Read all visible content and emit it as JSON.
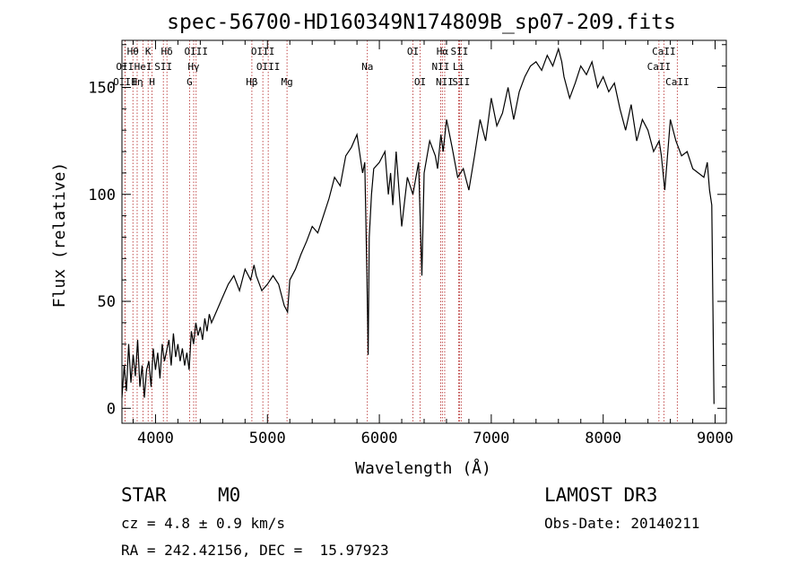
{
  "chart_data": {
    "type": "line",
    "title": "spec-56700-HD160349N174809B_sp07-209.fits",
    "xlabel": "Wavelength (Å)",
    "ylabel": "Flux (relative)",
    "xlim": [
      3700,
      9100
    ],
    "ylim": [
      -7,
      172
    ],
    "xticks": [
      4000,
      5000,
      6000,
      7000,
      8000,
      9000
    ],
    "yticks": [
      0,
      50,
      100,
      150
    ],
    "grid": false,
    "series": [
      {
        "color": "#000000",
        "x": [
          3700,
          3720,
          3740,
          3760,
          3780,
          3800,
          3820,
          3840,
          3860,
          3880,
          3900,
          3920,
          3940,
          3960,
          3980,
          4000,
          4020,
          4040,
          4060,
          4080,
          4100,
          4120,
          4140,
          4160,
          4180,
          4200,
          4220,
          4240,
          4260,
          4280,
          4300,
          4320,
          4340,
          4360,
          4380,
          4400,
          4420,
          4440,
          4460,
          4480,
          4500,
          4550,
          4600,
          4650,
          4700,
          4750,
          4800,
          4850,
          4880,
          4900,
          4950,
          5000,
          5050,
          5100,
          5150,
          5180,
          5200,
          5250,
          5300,
          5350,
          5400,
          5450,
          5500,
          5550,
          5600,
          5650,
          5700,
          5750,
          5800,
          5850,
          5870,
          5890,
          5900,
          5910,
          5930,
          5950,
          6000,
          6050,
          6080,
          6100,
          6120,
          6150,
          6200,
          6250,
          6300,
          6350,
          6380,
          6400,
          6450,
          6500,
          6520,
          6550,
          6570,
          6600,
          6650,
          6700,
          6750,
          6800,
          6850,
          6900,
          6950,
          7000,
          7050,
          7100,
          7150,
          7200,
          7250,
          7300,
          7350,
          7400,
          7450,
          7500,
          7550,
          7600,
          7630,
          7650,
          7700,
          7750,
          7800,
          7850,
          7900,
          7950,
          8000,
          8050,
          8100,
          8150,
          8200,
          8250,
          8300,
          8350,
          8400,
          8450,
          8500,
          8520,
          8550,
          8600,
          8650,
          8700,
          8750,
          8800,
          8850,
          8900,
          8930,
          8950,
          8970,
          8980,
          8990
        ],
        "values": [
          5,
          20,
          8,
          30,
          12,
          25,
          15,
          32,
          10,
          20,
          5,
          18,
          22,
          10,
          28,
          18,
          26,
          14,
          30,
          22,
          27,
          32,
          20,
          35,
          24,
          30,
          22,
          28,
          20,
          26,
          18,
          36,
          30,
          40,
          34,
          38,
          32,
          42,
          36,
          44,
          40,
          46,
          52,
          58,
          62,
          55,
          65,
          60,
          67,
          62,
          55,
          58,
          62,
          58,
          48,
          45,
          60,
          65,
          72,
          78,
          85,
          82,
          90,
          98,
          108,
          104,
          118,
          122,
          128,
          110,
          115,
          60,
          25,
          80,
          100,
          112,
          115,
          120,
          100,
          110,
          95,
          120,
          85,
          108,
          100,
          115,
          62,
          110,
          125,
          118,
          112,
          128,
          120,
          135,
          122,
          108,
          112,
          102,
          118,
          135,
          125,
          145,
          132,
          138,
          150,
          135,
          148,
          155,
          160,
          162,
          158,
          165,
          160,
          168,
          162,
          155,
          145,
          152,
          160,
          156,
          162,
          150,
          155,
          148,
          152,
          140,
          130,
          142,
          125,
          135,
          130,
          120,
          125,
          118,
          102,
          135,
          125,
          118,
          120,
          112,
          110,
          108,
          115,
          102,
          95,
          50,
          2
        ]
      }
    ],
    "lines": [
      {
        "label": "Hθ",
        "x": 3798,
        "row": 1
      },
      {
        "label": "OII",
        "x": 3727,
        "row": 2
      },
      {
        "label": "Hη",
        "x": 3836,
        "row": 3
      },
      {
        "label": "OIII",
        "x": 3727,
        "row": 3
      },
      {
        "label": "HeI",
        "x": 3889,
        "row": 2
      },
      {
        "label": "K",
        "x": 3934,
        "row": 1
      },
      {
        "label": "H",
        "x": 3969,
        "row": 3
      },
      {
        "label": "SII",
        "x": 4070,
        "row": 2
      },
      {
        "label": "Hδ",
        "x": 4102,
        "row": 1
      },
      {
        "label": "OIII",
        "x": 4363,
        "row": 1
      },
      {
        "label": "Hγ",
        "x": 4341,
        "row": 2
      },
      {
        "label": "G",
        "x": 4304,
        "row": 3
      },
      {
        "label": "OIII",
        "x": 4959,
        "row": 1
      },
      {
        "label": "OIII",
        "x": 5007,
        "row": 2
      },
      {
        "label": "Hβ",
        "x": 4861,
        "row": 3
      },
      {
        "label": "Mg",
        "x": 5175,
        "row": 3
      },
      {
        "label": "Na",
        "x": 5893,
        "row": 2
      },
      {
        "label": "OI",
        "x": 6300,
        "row": 1
      },
      {
        "label": "OI",
        "x": 6364,
        "row": 3
      },
      {
        "label": "Hα",
        "x": 6563,
        "row": 1
      },
      {
        "label": "SII",
        "x": 6716,
        "row": 1
      },
      {
        "label": "NII",
        "x": 6548,
        "row": 2
      },
      {
        "label": "Li",
        "x": 6708,
        "row": 2
      },
      {
        "label": "NII",
        "x": 6584,
        "row": 3
      },
      {
        "label": "SII",
        "x": 6731,
        "row": 3
      },
      {
        "label": "CaII",
        "x": 8542,
        "row": 1
      },
      {
        "label": "CaII",
        "x": 8498,
        "row": 2
      },
      {
        "label": "CaII",
        "x": 8662,
        "row": 3
      }
    ]
  },
  "info": {
    "object_class": "STAR",
    "subclass": "M0",
    "survey": "LAMOST DR3",
    "cz": "cz = 4.8 ± 0.9 km/s",
    "obs_date": "Obs-Date: 20140211",
    "coords": "RA = 242.42156, DEC =  15.97923"
  }
}
